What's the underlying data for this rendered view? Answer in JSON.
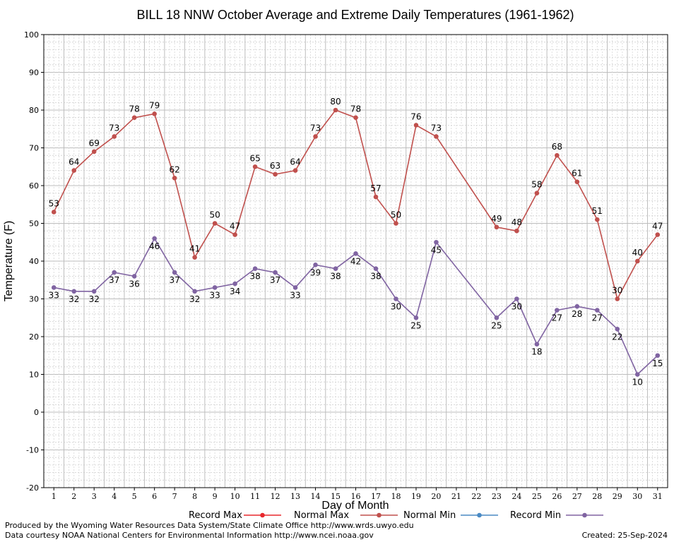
{
  "chart_data": {
    "type": "line",
    "title": "BILL 18 NNW October Average and Extreme Daily Temperatures (1961-1962)",
    "xlabel": "Day of Month",
    "ylabel": "Temperature (F)",
    "ylim": [
      -20,
      100
    ],
    "yticks": [
      "100",
      "90",
      "80",
      "70",
      "60",
      "50",
      "40",
      "30",
      "20",
      "10",
      "0",
      "-10",
      "-20"
    ],
    "xticks": [
      "1",
      "2",
      "3",
      "4",
      "5",
      "6",
      "7",
      "8",
      "9",
      "10",
      "11",
      "12",
      "13",
      "14",
      "15",
      "16",
      "17",
      "18",
      "19",
      "20",
      "21",
      "22",
      "23",
      "24",
      "25",
      "26",
      "27",
      "28",
      "29",
      "30",
      "31"
    ],
    "grid": true,
    "legend_position": "bottom",
    "series": [
      {
        "name": "Record Max",
        "color": "#e8282d",
        "points": []
      },
      {
        "name": "Normal Max",
        "color": "#c0504d",
        "points": [
          {
            "day": 1,
            "value": 53
          },
          {
            "day": 2,
            "value": 64
          },
          {
            "day": 3,
            "value": 69
          },
          {
            "day": 4,
            "value": 73
          },
          {
            "day": 5,
            "value": 78
          },
          {
            "day": 6,
            "value": 79
          },
          {
            "day": 7,
            "value": 62
          },
          {
            "day": 8,
            "value": 41
          },
          {
            "day": 9,
            "value": 50
          },
          {
            "day": 10,
            "value": 47
          },
          {
            "day": 11,
            "value": 65
          },
          {
            "day": 12,
            "value": 63
          },
          {
            "day": 13,
            "value": 64
          },
          {
            "day": 14,
            "value": 73
          },
          {
            "day": 15,
            "value": 80
          },
          {
            "day": 16,
            "value": 78
          },
          {
            "day": 17,
            "value": 57
          },
          {
            "day": 18,
            "value": 50
          },
          {
            "day": 19,
            "value": 76
          },
          {
            "day": 20,
            "value": 73
          },
          {
            "day": 23,
            "value": 49
          },
          {
            "day": 24,
            "value": 48
          },
          {
            "day": 25,
            "value": 58
          },
          {
            "day": 26,
            "value": 68
          },
          {
            "day": 27,
            "value": 61
          },
          {
            "day": 28,
            "value": 51
          },
          {
            "day": 29,
            "value": 30
          },
          {
            "day": 30,
            "value": 40
          },
          {
            "day": 31,
            "value": 47
          }
        ]
      },
      {
        "name": "Normal Min",
        "color": "#4a8ac4",
        "points": []
      },
      {
        "name": "Record Min",
        "color": "#8064a2",
        "points": [
          {
            "day": 1,
            "value": 33
          },
          {
            "day": 2,
            "value": 32
          },
          {
            "day": 3,
            "value": 32
          },
          {
            "day": 4,
            "value": 37
          },
          {
            "day": 5,
            "value": 36
          },
          {
            "day": 6,
            "value": 46
          },
          {
            "day": 7,
            "value": 37
          },
          {
            "day": 8,
            "value": 32
          },
          {
            "day": 9,
            "value": 33
          },
          {
            "day": 10,
            "value": 34
          },
          {
            "day": 11,
            "value": 38
          },
          {
            "day": 12,
            "value": 37
          },
          {
            "day": 13,
            "value": 33
          },
          {
            "day": 14,
            "value": 39
          },
          {
            "day": 15,
            "value": 38
          },
          {
            "day": 16,
            "value": 42
          },
          {
            "day": 17,
            "value": 38
          },
          {
            "day": 18,
            "value": 30
          },
          {
            "day": 19,
            "value": 25
          },
          {
            "day": 20,
            "value": 45
          },
          {
            "day": 23,
            "value": 25
          },
          {
            "day": 24,
            "value": 30
          },
          {
            "day": 25,
            "value": 18
          },
          {
            "day": 26,
            "value": 27
          },
          {
            "day": 27,
            "value": 28
          },
          {
            "day": 28,
            "value": 27
          },
          {
            "day": 29,
            "value": 22
          },
          {
            "day": 30,
            "value": 10
          },
          {
            "day": 31,
            "value": 15
          }
        ]
      }
    ]
  },
  "footer": {
    "produced_by": "Produced by the Wyoming Water Resources Data System/State Climate Office http://www.wrds.uwyo.edu",
    "data_courtesy": "Data courtesy NOAA National Centers for Environmental Information http://www.ncei.noaa.gov",
    "created": "Created:  25-Sep-2024"
  }
}
